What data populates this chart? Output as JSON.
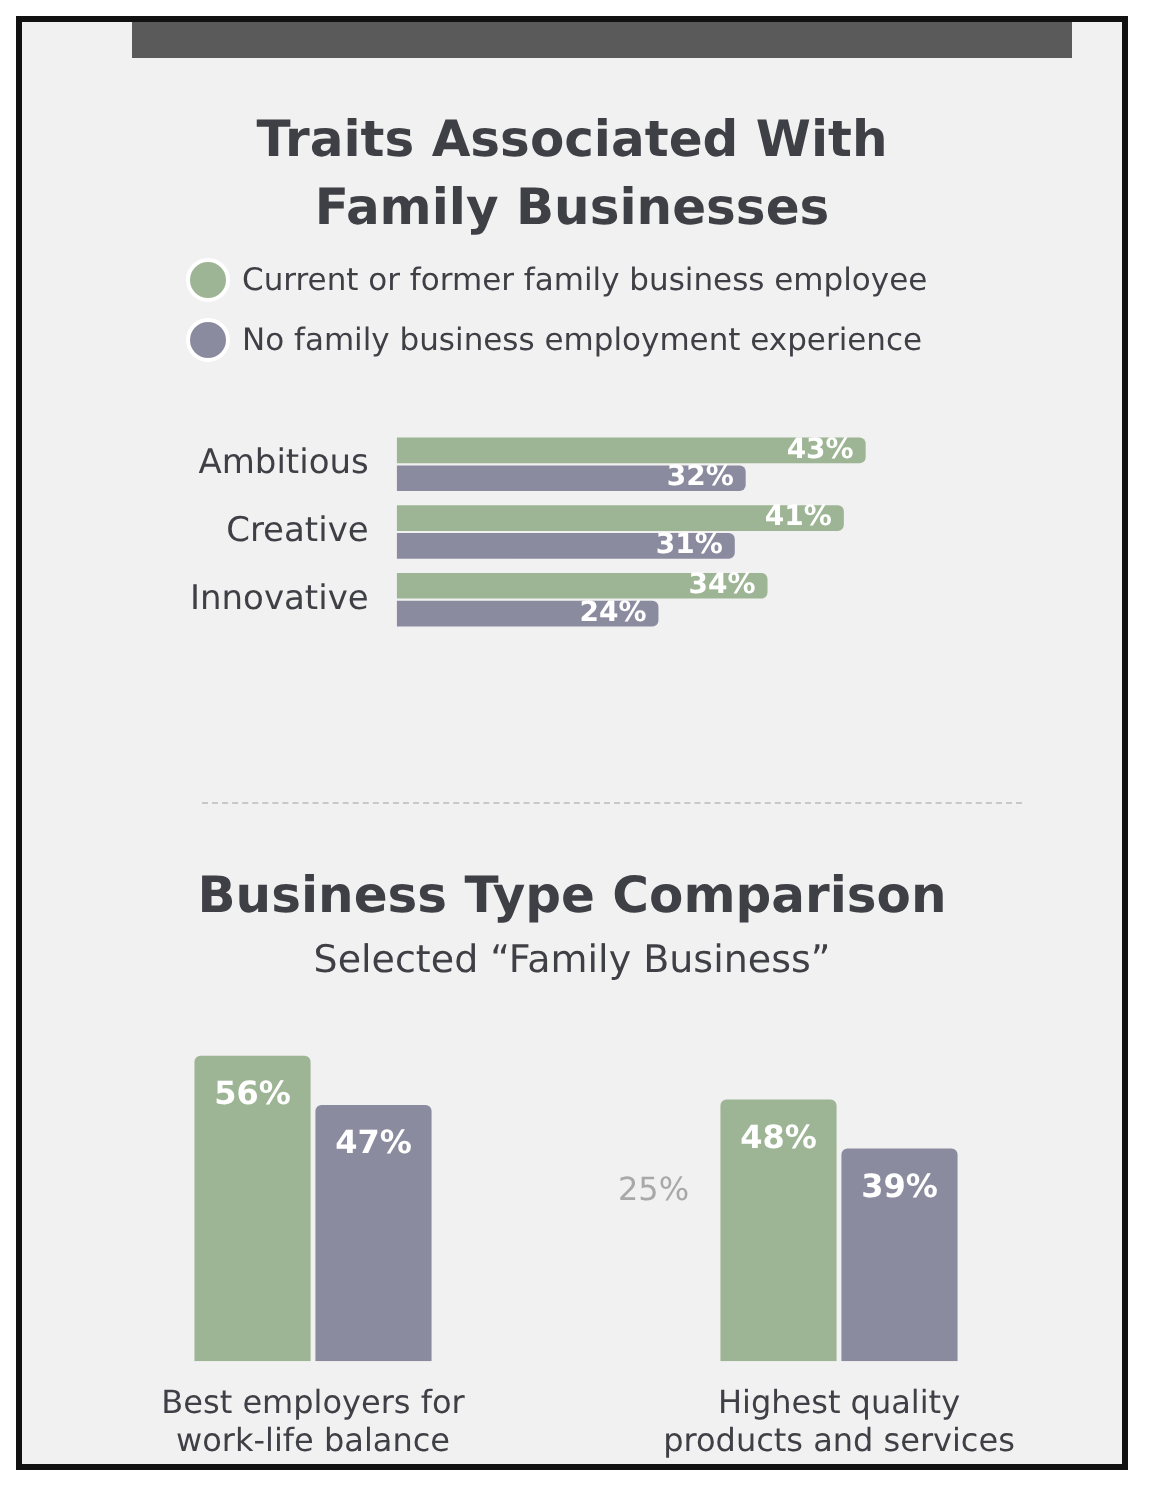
{
  "chart_data": [
    {
      "type": "bar",
      "title": "Traits Associated With Family Businesses",
      "orientation": "horizontal",
      "categories": [
        "Ambitious",
        "Creative",
        "Innovative"
      ],
      "series": [
        {
          "name": "Current or former family business employee",
          "color": "#9db594",
          "values": [
            43,
            41,
            34
          ],
          "value_labels": [
            "43%",
            "41%",
            "34%"
          ]
        },
        {
          "name": "No family business employment experience",
          "color": "#8b8ba0",
          "values": [
            32,
            31,
            24
          ],
          "value_labels": [
            "32%",
            "31%",
            "24%"
          ]
        }
      ],
      "legend": "top",
      "grid": false
    },
    {
      "type": "bar",
      "title": "Business Type Comparison",
      "subtitle": "Selected “Family Business”",
      "categories": [
        "Best employers for work-life balance",
        "Highest quality products and services"
      ],
      "series": [
        {
          "color": "#9db594",
          "values": [
            56,
            48
          ],
          "value_labels": [
            "56%",
            "48%"
          ]
        },
        {
          "color": "#8b8ba0",
          "values": [
            47,
            39
          ],
          "value_labels": [
            "47%",
            "39%"
          ]
        }
      ],
      "grid": false,
      "annotations": [
        "25%"
      ]
    }
  ]
}
